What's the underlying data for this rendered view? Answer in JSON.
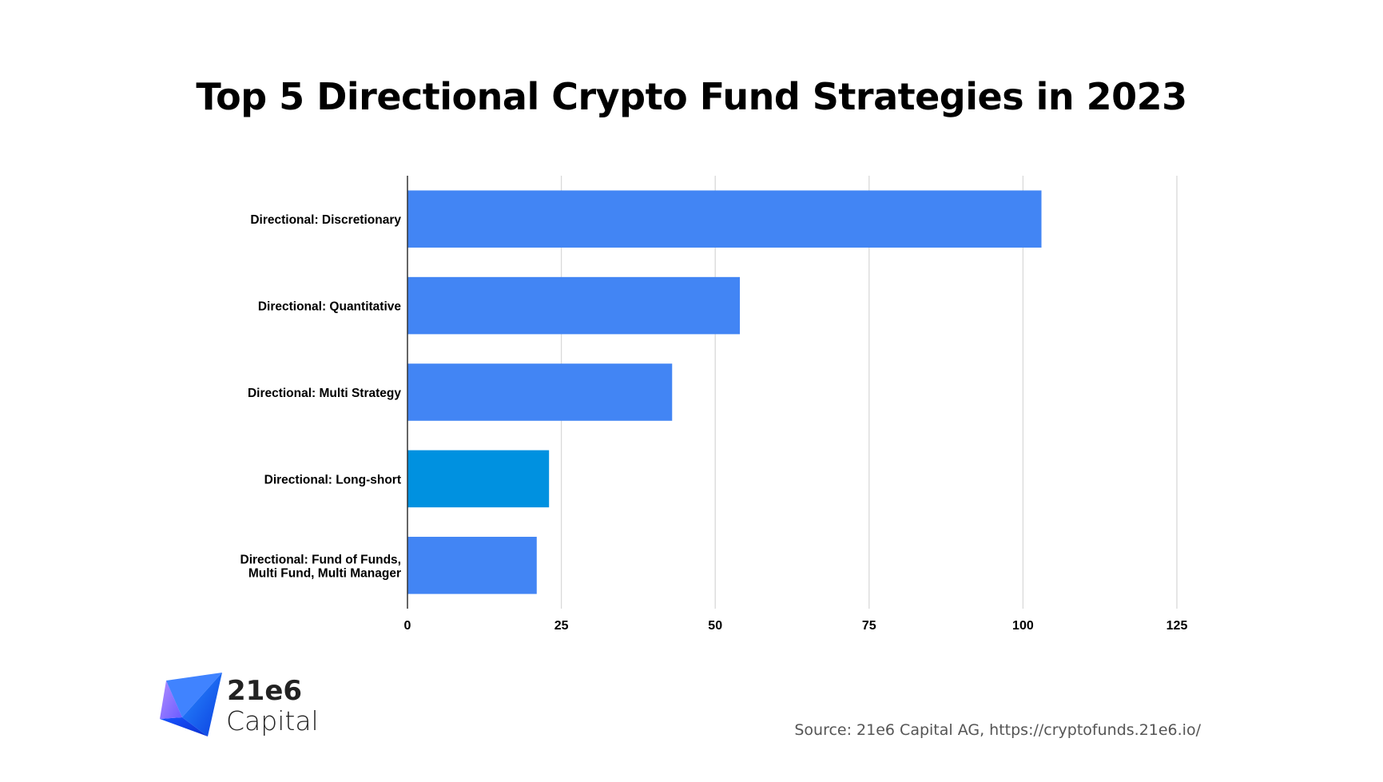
{
  "chart_data": {
    "type": "bar",
    "orientation": "horizontal",
    "title": "Top 5 Directional Crypto Fund Strategies in 2023",
    "categories": [
      [
        "Directional: Discretionary"
      ],
      [
        "Directional: Quantitative"
      ],
      [
        "Directional: Multi Strategy"
      ],
      [
        "Directional: Long-short"
      ],
      [
        "Directional: Fund of Funds,",
        "Multi Fund, Multi Manager"
      ]
    ],
    "values": [
      103,
      54,
      43,
      23,
      21
    ],
    "bar_colors": [
      "#4285f4",
      "#4285f4",
      "#4285f4",
      "#0091e0",
      "#4285f4"
    ],
    "xlim": [
      0,
      125
    ],
    "xticks": [
      0,
      25,
      50,
      75,
      100,
      125
    ],
    "xlabel": "",
    "ylabel": "",
    "grid": true
  },
  "footer": {
    "source": "Source: 21e6 Capital AG, https://cryptofunds.21e6.io/"
  },
  "logo": {
    "line1": "21e6",
    "line2": "Capital"
  },
  "colors": {
    "grid": "#d9d9d9",
    "axis": "#333333"
  }
}
